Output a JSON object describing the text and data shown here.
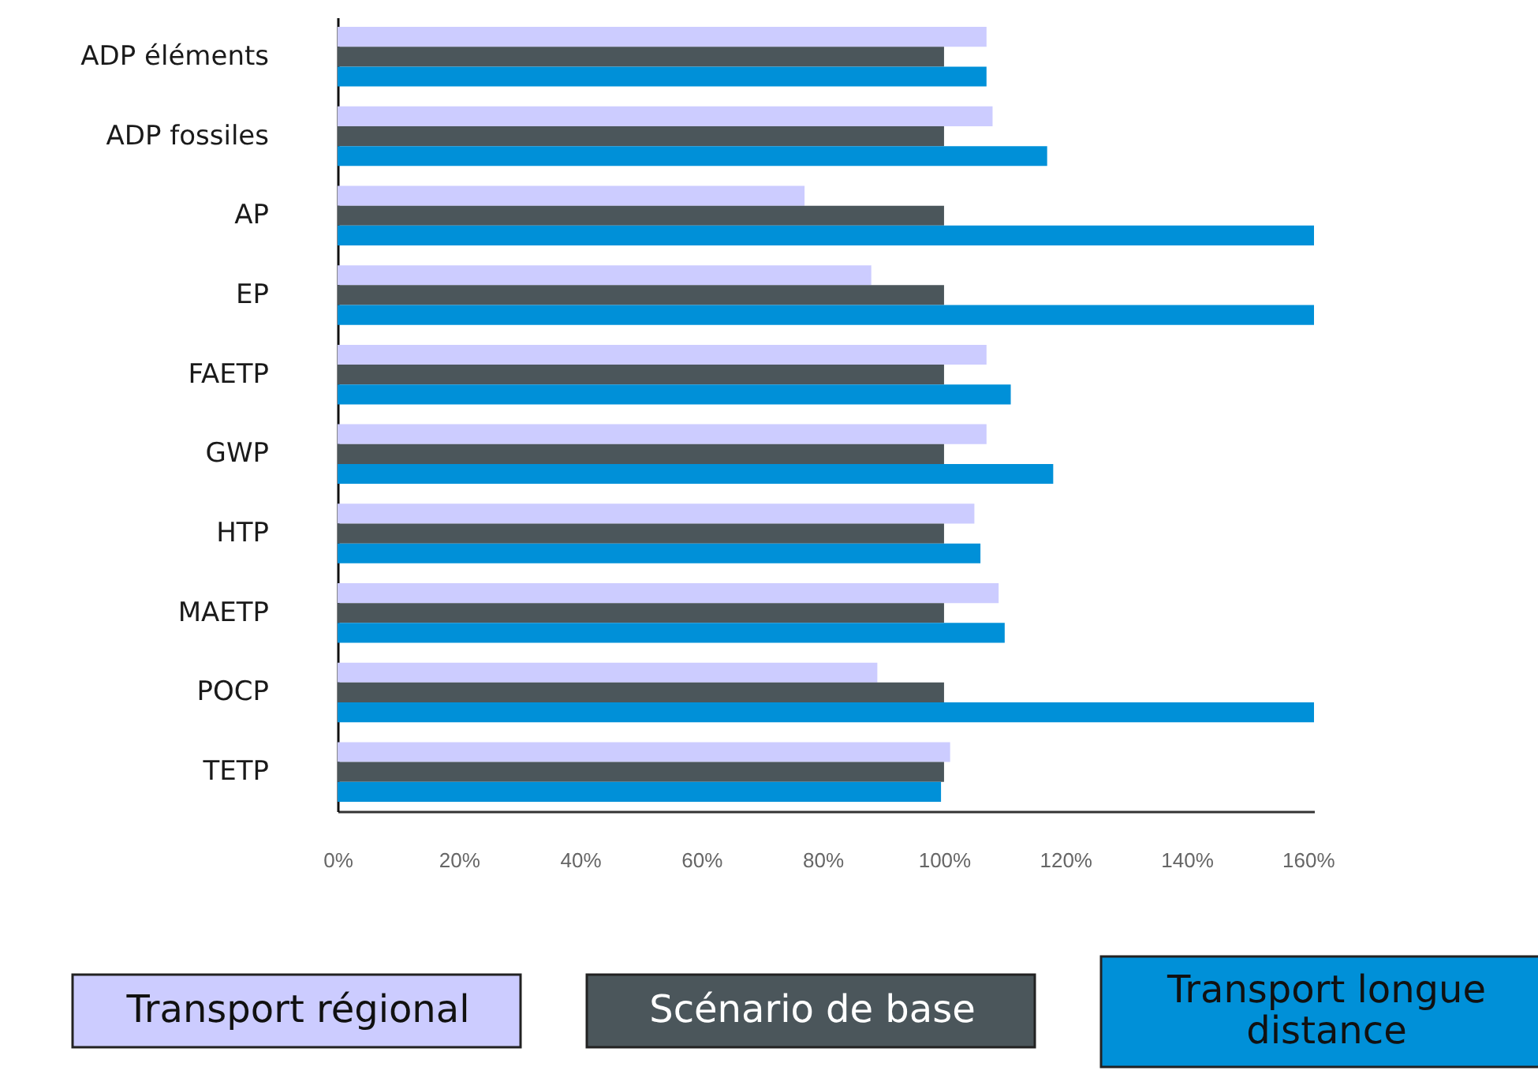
{
  "chart_data": {
    "type": "bar",
    "orientation": "horizontal",
    "categories": [
      "ADP éléments",
      "ADP fossiles",
      "AP",
      "EP",
      "FAETP",
      "GWP",
      "HTP",
      "MAETP",
      "POCP",
      "TETP"
    ],
    "series": [
      {
        "name": "Transport régional",
        "color": "#ccccff",
        "values": [
          107,
          108,
          77,
          88,
          107,
          107,
          105,
          109,
          89,
          101
        ]
      },
      {
        "name": "Scénario de base",
        "color": "#4b565b",
        "values": [
          100,
          100,
          100,
          100,
          100,
          100,
          100,
          100,
          100,
          100
        ]
      },
      {
        "name": "Transport longue distance",
        "color": "#0090d8",
        "values": [
          107,
          117,
          161,
          161,
          111,
          118,
          106,
          110,
          161,
          99.5
        ]
      }
    ],
    "xlim": [
      0,
      161
    ],
    "xticks": [
      {
        "value": 0,
        "label": "0%"
      },
      {
        "value": 20,
        "label": "20%"
      },
      {
        "value": 40,
        "label": "40%"
      },
      {
        "value": 60,
        "label": "60%"
      },
      {
        "value": 80,
        "label": "80%"
      },
      {
        "value": 100,
        "label": "100%"
      },
      {
        "value": 120,
        "label": "120%"
      },
      {
        "value": 140,
        "label": "140%"
      },
      {
        "value": 160,
        "label": "160%"
      }
    ],
    "grid": false,
    "legend": "bottom"
  }
}
